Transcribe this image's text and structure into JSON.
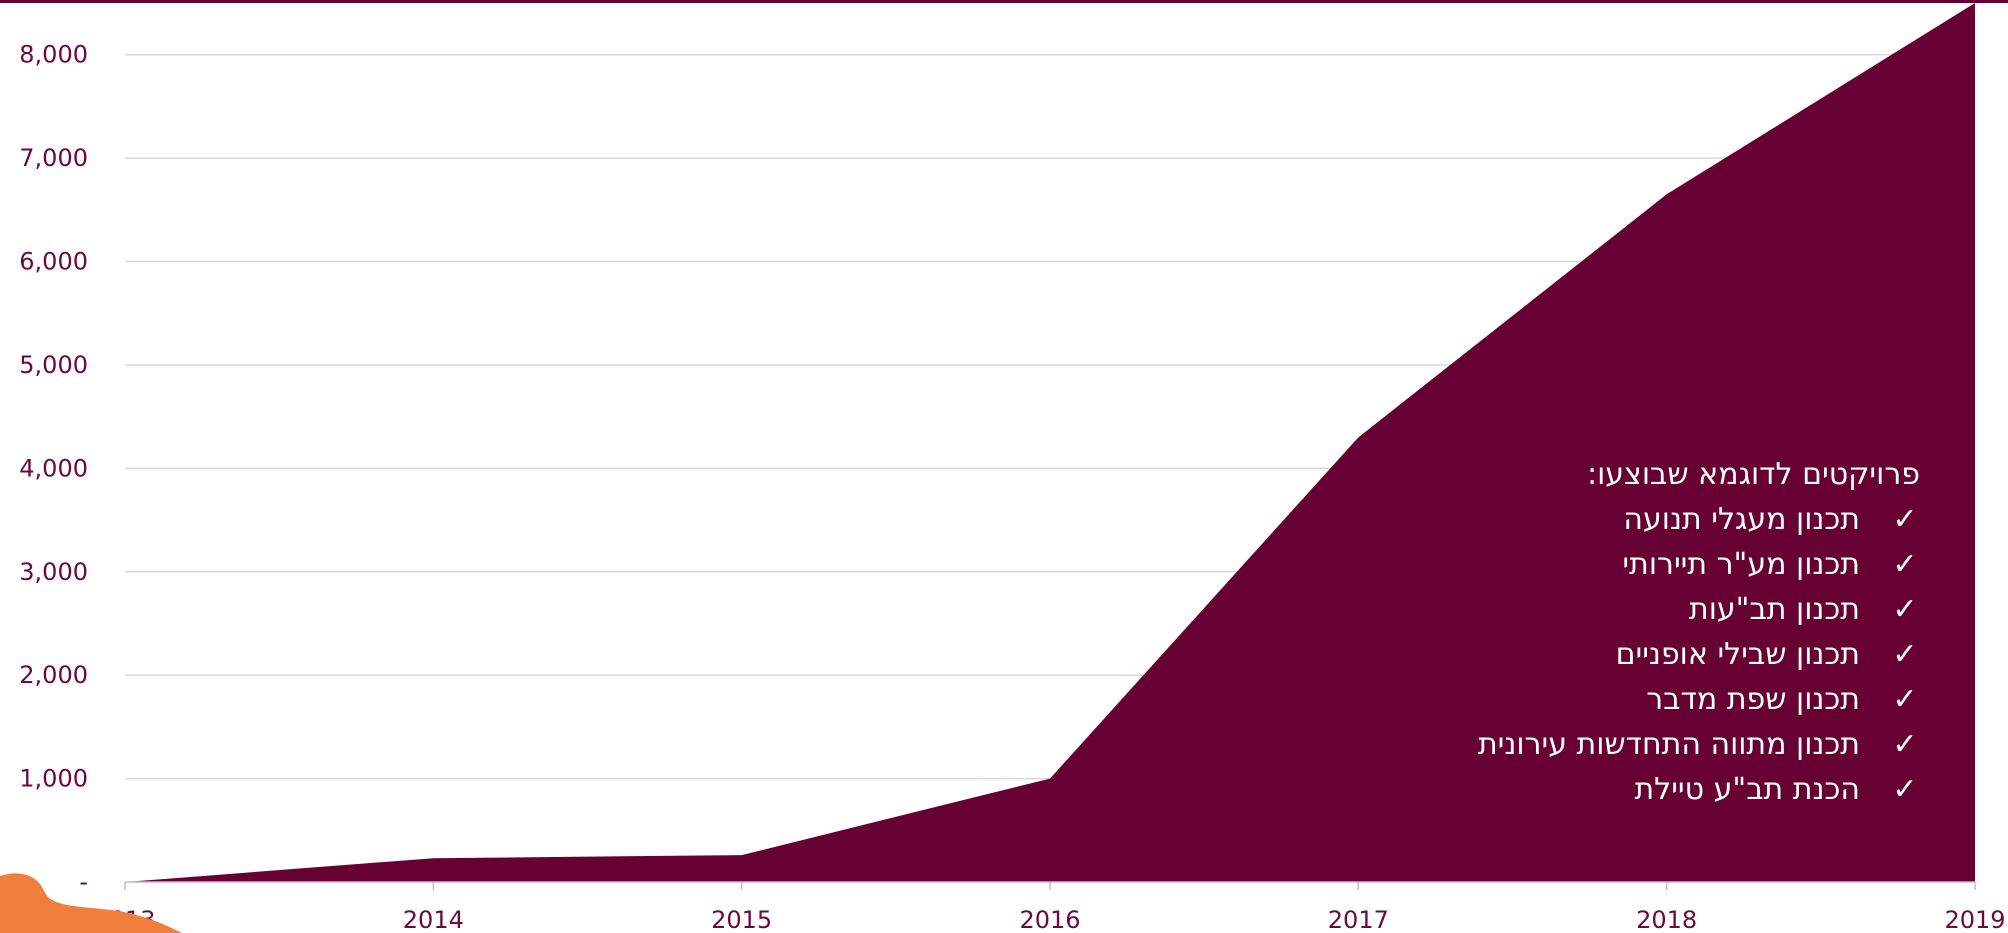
{
  "chart_data": {
    "type": "area",
    "x": [
      "2013",
      "2014",
      "2015",
      "2016",
      "2017",
      "2018",
      "2019"
    ],
    "values": [
      0,
      230,
      260,
      1000,
      4300,
      6650,
      8500
    ],
    "ylim": [
      0,
      8500
    ],
    "yticks": [
      0,
      1000,
      2000,
      3000,
      4000,
      5000,
      6000,
      7000,
      8000
    ],
    "ytick_labels": [
      "-",
      "1,000",
      "2,000",
      "3,000",
      "4,000",
      "5,000",
      "6,000",
      "7,000",
      "8,000"
    ],
    "grid": true,
    "fill_color": "#670033",
    "tick_color": "#6a0a3c",
    "annotation": {
      "title": "פרויקטים לדוגמא שבוצעו:",
      "items": [
        "תכנון מעגלי תנועה",
        "תכנון מע\"ר תיירותי",
        "תכנון תב\"עות",
        "תכנון שבילי אופניים",
        "תכנון שפת מדבר",
        "תכנון מתווה התחדשות עירונית",
        "הכנת תב\"ע טיילת"
      ]
    }
  },
  "decor": {
    "top_border_color": "#670033",
    "orange_color": "#f07f3c"
  }
}
